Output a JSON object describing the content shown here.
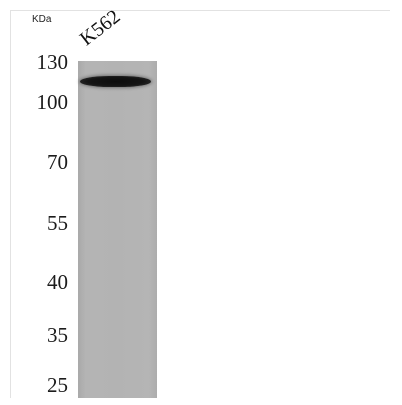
{
  "unit_label": "KDa",
  "lane_label": "K562",
  "markers": {
    "m130": "130",
    "m100": "100",
    "m70": "70",
    "m55": "55",
    "m40": "40",
    "m35": "35",
    "m25": "25"
  },
  "colors": {
    "gel": "#b3b3b3",
    "band": "#111111"
  }
}
